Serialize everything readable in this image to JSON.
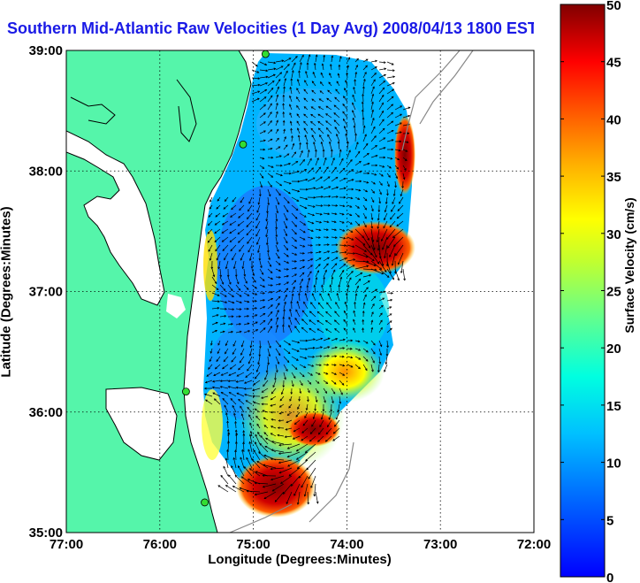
{
  "title": "Southern Mid-Atlantic Raw Velocities (1 Day Avg) 2008/04/13 1800 EST",
  "map": {
    "xlabel": "Longitude (Degrees:Minutes)",
    "ylabel": "Latitude (Degrees:Minutes)",
    "x_ticks": [
      "77:00",
      "76:00",
      "75:00",
      "74:00",
      "73:00",
      "72:00"
    ],
    "y_ticks": [
      "39:00",
      "38:00",
      "37:00",
      "36:00",
      "35:00"
    ],
    "lon_range": [
      -77,
      -72
    ],
    "lat_range": [
      35,
      39
    ],
    "grid": true
  },
  "colorbar": {
    "label": "Surface Velocity (cm/s)",
    "ticks": [
      "50",
      "45",
      "40",
      "35",
      "30",
      "25",
      "20",
      "15",
      "10",
      "5",
      "0"
    ],
    "min": 0,
    "max": 50,
    "colormap": "jet"
  },
  "colors": {
    "land": "#55f5aa",
    "title": "#1a1ae6",
    "station": "#33dd33"
  },
  "stations": [
    {
      "lon": -74.87,
      "lat": 38.97
    },
    {
      "lon": -75.11,
      "lat": 38.22
    },
    {
      "lon": -75.72,
      "lat": 36.17
    },
    {
      "lon": -75.52,
      "lat": 35.25
    }
  ]
}
